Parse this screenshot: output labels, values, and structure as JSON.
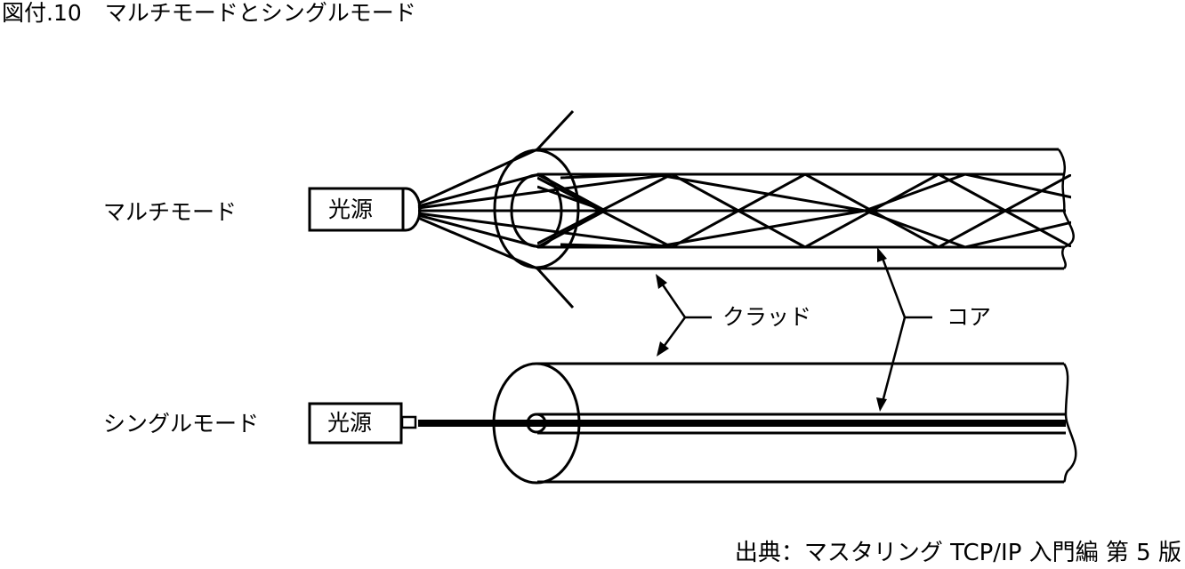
{
  "figure": {
    "number": "図付.10",
    "title": "マルチモードとシングルモード"
  },
  "modes": {
    "multi": "マルチモード",
    "single": "シングルモード"
  },
  "light_source": "光源",
  "callouts": {
    "cladding": "クラッド",
    "core": "コア"
  },
  "source_note": "出典：マスタリング TCP/IP 入門編 第 5 版"
}
